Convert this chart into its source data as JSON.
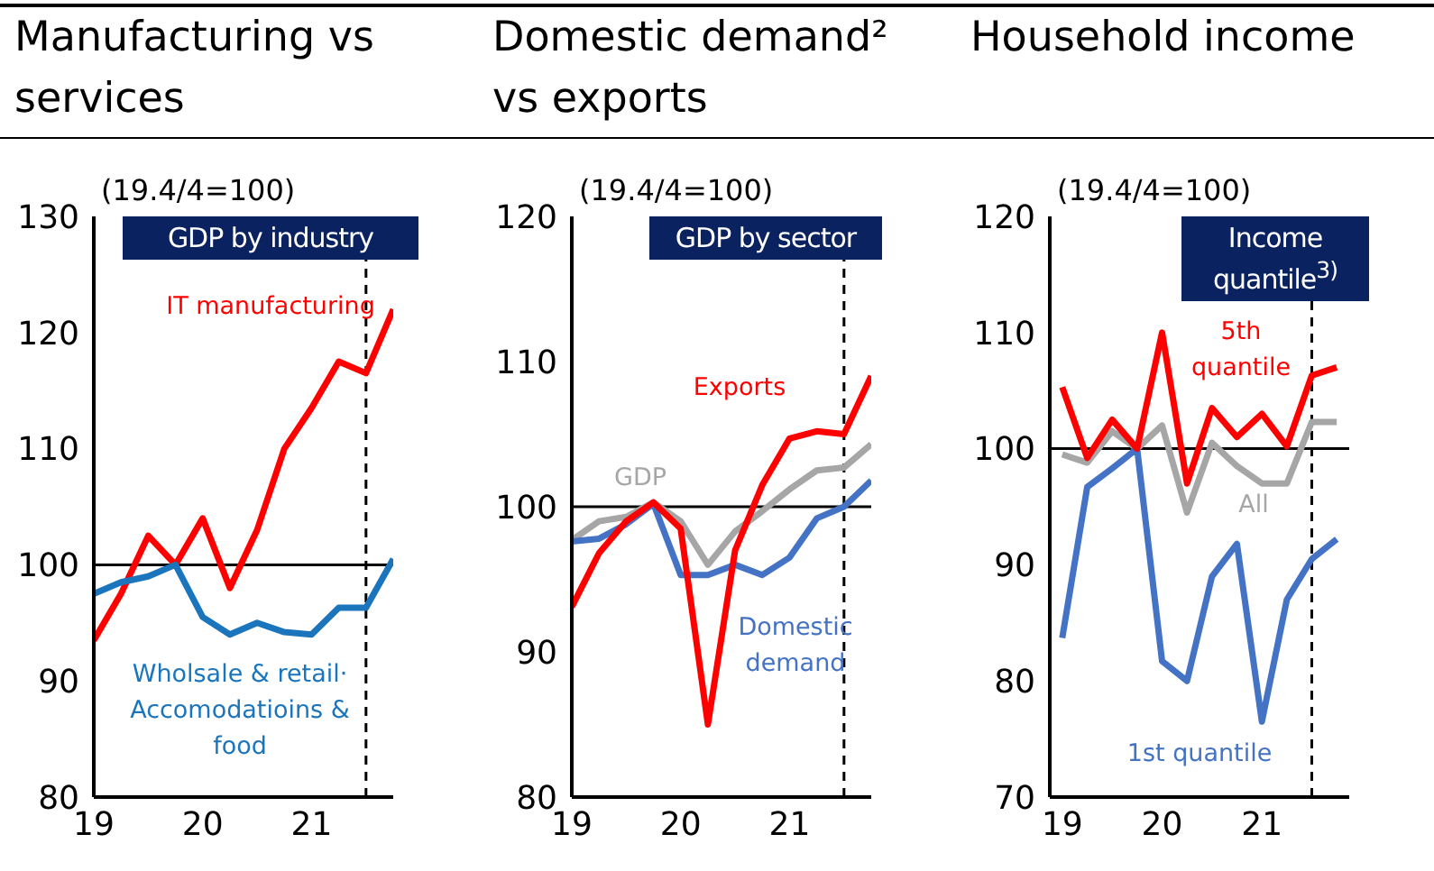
{
  "chart_data": [
    {
      "type": "line",
      "title": "Manufacturing vs services",
      "subtitle": "GDP by industry",
      "ylabel": "(19.4/4=100)",
      "x": [
        2019,
        2019.25,
        2019.5,
        2019.75,
        2020,
        2020.25,
        2020.5,
        2020.75,
        2021,
        2021.25,
        2021.5,
        2021.75
      ],
      "xlim": [
        2019,
        2021.75
      ],
      "xticks": [
        {
          "value": 2019,
          "label": "19"
        },
        {
          "value": 2020,
          "label": "20"
        },
        {
          "value": 2021,
          "label": "21"
        }
      ],
      "ylim": [
        80,
        130
      ],
      "yticks": [
        80,
        90,
        100,
        110,
        120,
        130
      ],
      "grid": false,
      "legend": false,
      "marker": "none",
      "series": [
        {
          "name": "IT  manufacturing",
          "color": "#ff0000",
          "values": [
            93.5,
            97.5,
            102.5,
            100,
            104,
            98,
            103,
            110,
            113.5,
            117.5,
            116.5,
            122
          ]
        },
        {
          "name": "Wholsale & retail· Accomodatioins & food",
          "color": "#1b75bc",
          "values": [
            97.5,
            98.5,
            99,
            100,
            95.5,
            94,
            95,
            94.2,
            94,
            96.3,
            96.3,
            100.5
          ]
        }
      ],
      "ref_lines": [
        {
          "axis": "y",
          "value": 100,
          "color": "#000000",
          "line_style": "solid"
        },
        {
          "axis": "x",
          "value": 2021.5,
          "color": "#000000",
          "line_style": "dashed"
        }
      ]
    },
    {
      "type": "line",
      "title": "Domestic demand² vs exports",
      "subtitle": "GDP by sector",
      "ylabel": "(19.4/4=100)",
      "x": [
        2019,
        2019.25,
        2019.5,
        2019.75,
        2020,
        2020.25,
        2020.5,
        2020.75,
        2021,
        2021.25,
        2021.5,
        2021.75
      ],
      "xlim": [
        2019,
        2021.75
      ],
      "xticks": [
        {
          "value": 2019,
          "label": "19"
        },
        {
          "value": 2020,
          "label": "20"
        },
        {
          "value": 2021,
          "label": "21"
        }
      ],
      "ylim": [
        80,
        120
      ],
      "yticks": [
        80,
        90,
        100,
        110,
        120
      ],
      "grid": false,
      "legend": false,
      "marker": "none",
      "series": [
        {
          "name": "GDP",
          "color": "#a6a6a6",
          "values": [
            97.7,
            99,
            99.3,
            100.3,
            99,
            96,
            98.3,
            99.7,
            101.2,
            102.5,
            102.7,
            104.3
          ]
        },
        {
          "name": "Domestic demand",
          "color": "#4472c4",
          "values": [
            97.6,
            97.8,
            98.8,
            100.2,
            95.3,
            95.3,
            96,
            95.3,
            96.5,
            99.2,
            100,
            101.8
          ]
        },
        {
          "name": "Exports",
          "color": "#ff0000",
          "values": [
            93.1,
            96.8,
            99,
            100.3,
            98.5,
            85,
            97,
            101.5,
            104.7,
            105.2,
            105,
            109
          ]
        }
      ],
      "ref_lines": [
        {
          "axis": "y",
          "value": 100,
          "color": "#000000",
          "line_style": "solid"
        },
        {
          "axis": "x",
          "value": 2021.5,
          "color": "#000000",
          "line_style": "dashed"
        }
      ]
    },
    {
      "type": "line",
      "title": "Household income",
      "subtitle": "Income quantile$^{3)}$",
      "ylabel": "(19.4/4=100)",
      "x": [
        2019,
        2019.25,
        2019.5,
        2019.75,
        2020,
        2020.25,
        2020.5,
        2020.75,
        2021,
        2021.25,
        2021.5,
        2021.75
      ],
      "xlim": [
        2018.875,
        2021.875
      ],
      "xticks": [
        {
          "value": 2019,
          "label": "19"
        },
        {
          "value": 2020,
          "label": "20"
        },
        {
          "value": 2021,
          "label": "21"
        }
      ],
      "ylim": [
        70,
        120
      ],
      "yticks": [
        70,
        80,
        90,
        100,
        110,
        120
      ],
      "grid": false,
      "legend": false,
      "marker": "none",
      "series": [
        {
          "name": "All",
          "color": "#a6a6a6",
          "values": [
            99.5,
            98.8,
            101.5,
            100,
            102,
            94.5,
            100.5,
            98.5,
            97,
            97,
            102.3,
            102.3
          ]
        },
        {
          "name": "1st quantile",
          "color": "#4472c4",
          "values": [
            83.7,
            96.7,
            98.3,
            100,
            81.7,
            80,
            89,
            91.8,
            76.5,
            87,
            90.5,
            92.2
          ]
        },
        {
          "name": "5th quantile",
          "color": "#ff0000",
          "values": [
            105.3,
            99.2,
            102.5,
            100,
            110,
            97,
            103.5,
            101,
            103,
            100.2,
            106.3,
            107
          ]
        }
      ],
      "ref_lines": [
        {
          "axis": "y",
          "value": 100,
          "color": "#000000",
          "line_style": "solid"
        },
        {
          "axis": "x",
          "value": 2021.5,
          "color": "#000000",
          "line_style": "dashed"
        }
      ]
    }
  ]
}
